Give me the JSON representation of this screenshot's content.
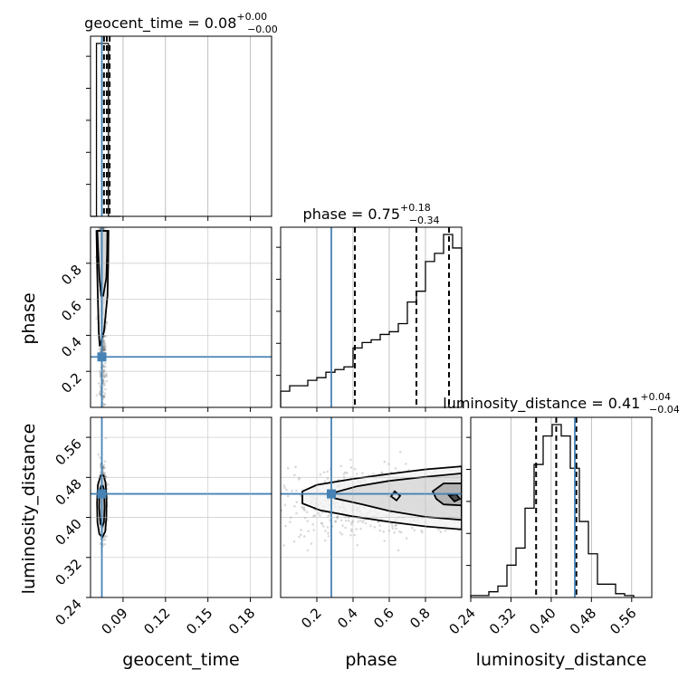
{
  "chart_data": {
    "type": "corner",
    "parameters": [
      "geocent_time",
      "phase",
      "luminosity_distance"
    ],
    "truths": {
      "geocent_time": 0.075,
      "phase": 0.28,
      "luminosity_distance": 0.447
    },
    "quantiles": {
      "geocent_time": [
        0.0765,
        0.0785,
        0.0805
      ],
      "phase": [
        0.41,
        0.75,
        0.93
      ],
      "luminosity_distance": [
        0.37,
        0.41,
        0.45
      ]
    },
    "titles": {
      "geocent_time": {
        "name": "geocent_time",
        "value": "0.08",
        "plus": "+0.00",
        "minus": "−0.00"
      },
      "phase": {
        "name": "phase",
        "value": "0.75",
        "plus": "+0.18",
        "minus": "−0.34"
      },
      "luminosity_distance": {
        "name": "luminosity_distance",
        "value": "0.41",
        "plus": "+0.04",
        "minus": "−0.04"
      }
    },
    "axes": {
      "geocent_time": {
        "range": [
          0.067,
          0.195
        ],
        "ticks": [
          0.09,
          0.12,
          0.15,
          0.18
        ],
        "tick_labels": [
          "0.09",
          "0.12",
          "0.15",
          "0.18"
        ]
      },
      "phase": {
        "range": [
          0.0,
          1.0
        ],
        "ticks": [
          0.2,
          0.4,
          0.6,
          0.8
        ],
        "tick_labels": [
          "0.2",
          "0.4",
          "0.6",
          "0.8"
        ]
      },
      "luminosity_distance": {
        "range": [
          0.24,
          0.6
        ],
        "ticks": [
          0.24,
          0.32,
          0.4,
          0.48,
          0.56
        ],
        "tick_labels": [
          "0.24",
          "0.32",
          "0.40",
          "0.48",
          "0.56"
        ]
      }
    },
    "histograms": {
      "geocent_time": {
        "edges": [
          0.067,
          0.0712,
          0.0755,
          0.0797,
          0.084,
          0.0882
        ],
        "counts": [
          0.0,
          0.93,
          0.93,
          0.0,
          0.0
        ]
      },
      "phase": {
        "edges": [
          0.0,
          0.05,
          0.1,
          0.15,
          0.2,
          0.25,
          0.3,
          0.35,
          0.4,
          0.45,
          0.5,
          0.55,
          0.6,
          0.65,
          0.7,
          0.75,
          0.8,
          0.85,
          0.9,
          0.95,
          1.0
        ],
        "counts": [
          0.06,
          0.08,
          0.08,
          0.1,
          0.11,
          0.13,
          0.14,
          0.15,
          0.22,
          0.24,
          0.25,
          0.27,
          0.28,
          0.31,
          0.39,
          0.43,
          0.54,
          0.57,
          0.64,
          0.59
        ]
      },
      "luminosity_distance": {
        "edges": [
          0.24,
          0.258,
          0.276,
          0.294,
          0.312,
          0.33,
          0.348,
          0.366,
          0.384,
          0.402,
          0.42,
          0.438,
          0.456,
          0.474,
          0.492,
          0.51,
          0.528,
          0.546,
          0.564
        ],
        "counts": [
          0.01,
          0.01,
          0.03,
          0.06,
          0.17,
          0.26,
          0.47,
          0.7,
          0.85,
          0.91,
          0.85,
          0.68,
          0.4,
          0.23,
          0.07,
          0.07,
          0.02,
          0.01
        ]
      }
    },
    "twod": [
      {
        "x": "geocent_time",
        "y": "phase",
        "contours": [
          [
            [
              0.0735,
              0.34
            ],
            [
              0.0765,
              0.42
            ],
            [
              0.079,
              0.62
            ],
            [
              0.0795,
              0.8
            ],
            [
              0.0797,
              0.98
            ],
            [
              0.0712,
              0.98
            ],
            [
              0.0716,
              0.8
            ],
            [
              0.0722,
              0.6
            ],
            [
              0.0728,
              0.42
            ]
          ],
          [
            [
              0.076,
              0.62
            ],
            [
              0.0782,
              0.72
            ],
            [
              0.0787,
              0.85
            ],
            [
              0.0789,
              0.98
            ],
            [
              0.0718,
              0.98
            ],
            [
              0.0725,
              0.85
            ],
            [
              0.0733,
              0.72
            ],
            [
              0.0745,
              0.62
            ]
          ]
        ]
      },
      {
        "x": "phase",
        "y": "luminosity_distance",
        "contours": [
          [
            [
              1.0,
              0.502
            ],
            [
              0.8,
              0.496
            ],
            [
              0.6,
              0.487
            ],
            [
              0.4,
              0.477
            ],
            [
              0.2,
              0.465
            ],
            [
              0.12,
              0.452
            ],
            [
              0.12,
              0.428
            ],
            [
              0.22,
              0.414
            ],
            [
              0.4,
              0.402
            ],
            [
              0.6,
              0.391
            ],
            [
              0.8,
              0.382
            ],
            [
              1.0,
              0.376
            ]
          ],
          [
            [
              1.0,
              0.488
            ],
            [
              0.8,
              0.481
            ],
            [
              0.6,
              0.473
            ],
            [
              0.42,
              0.462
            ],
            [
              0.3,
              0.45
            ],
            [
              0.3,
              0.438
            ],
            [
              0.45,
              0.426
            ],
            [
              0.6,
              0.413
            ],
            [
              0.8,
              0.401
            ],
            [
              1.0,
              0.395
            ]
          ],
          [
            [
              1.0,
              0.468
            ],
            [
              0.9,
              0.468
            ],
            [
              0.84,
              0.452
            ],
            [
              0.86,
              0.437
            ],
            [
              0.9,
              0.426
            ],
            [
              1.0,
              0.424
            ]
          ],
          [
            [
              0.93,
              0.444
            ],
            [
              0.96,
              0.432
            ],
            [
              0.99,
              0.437
            ],
            [
              0.97,
              0.446
            ]
          ],
          [
            [
              0.63,
              0.452
            ],
            [
              0.61,
              0.442
            ],
            [
              0.64,
              0.434
            ],
            [
              0.66,
              0.443
            ]
          ]
        ]
      },
      {
        "x": "geocent_time",
        "y": "luminosity_distance",
        "contours": [
          [
            [
              0.0776,
              0.47
            ],
            [
              0.0783,
              0.44
            ],
            [
              0.0782,
              0.4
            ],
            [
              0.0774,
              0.372
            ],
            [
              0.0754,
              0.36
            ],
            [
              0.0732,
              0.367
            ],
            [
              0.0719,
              0.39
            ],
            [
              0.0716,
              0.43
            ],
            [
              0.0722,
              0.465
            ],
            [
              0.0742,
              0.484
            ],
            [
              0.0762,
              0.484
            ]
          ],
          [
            [
              0.0766,
              0.455
            ],
            [
              0.0769,
              0.42
            ],
            [
              0.0765,
              0.39
            ],
            [
              0.0754,
              0.382
            ],
            [
              0.074,
              0.387
            ],
            [
              0.0731,
              0.42
            ],
            [
              0.0733,
              0.452
            ],
            [
              0.0745,
              0.463
            ],
            [
              0.0758,
              0.463
            ]
          ]
        ]
      }
    ]
  }
}
